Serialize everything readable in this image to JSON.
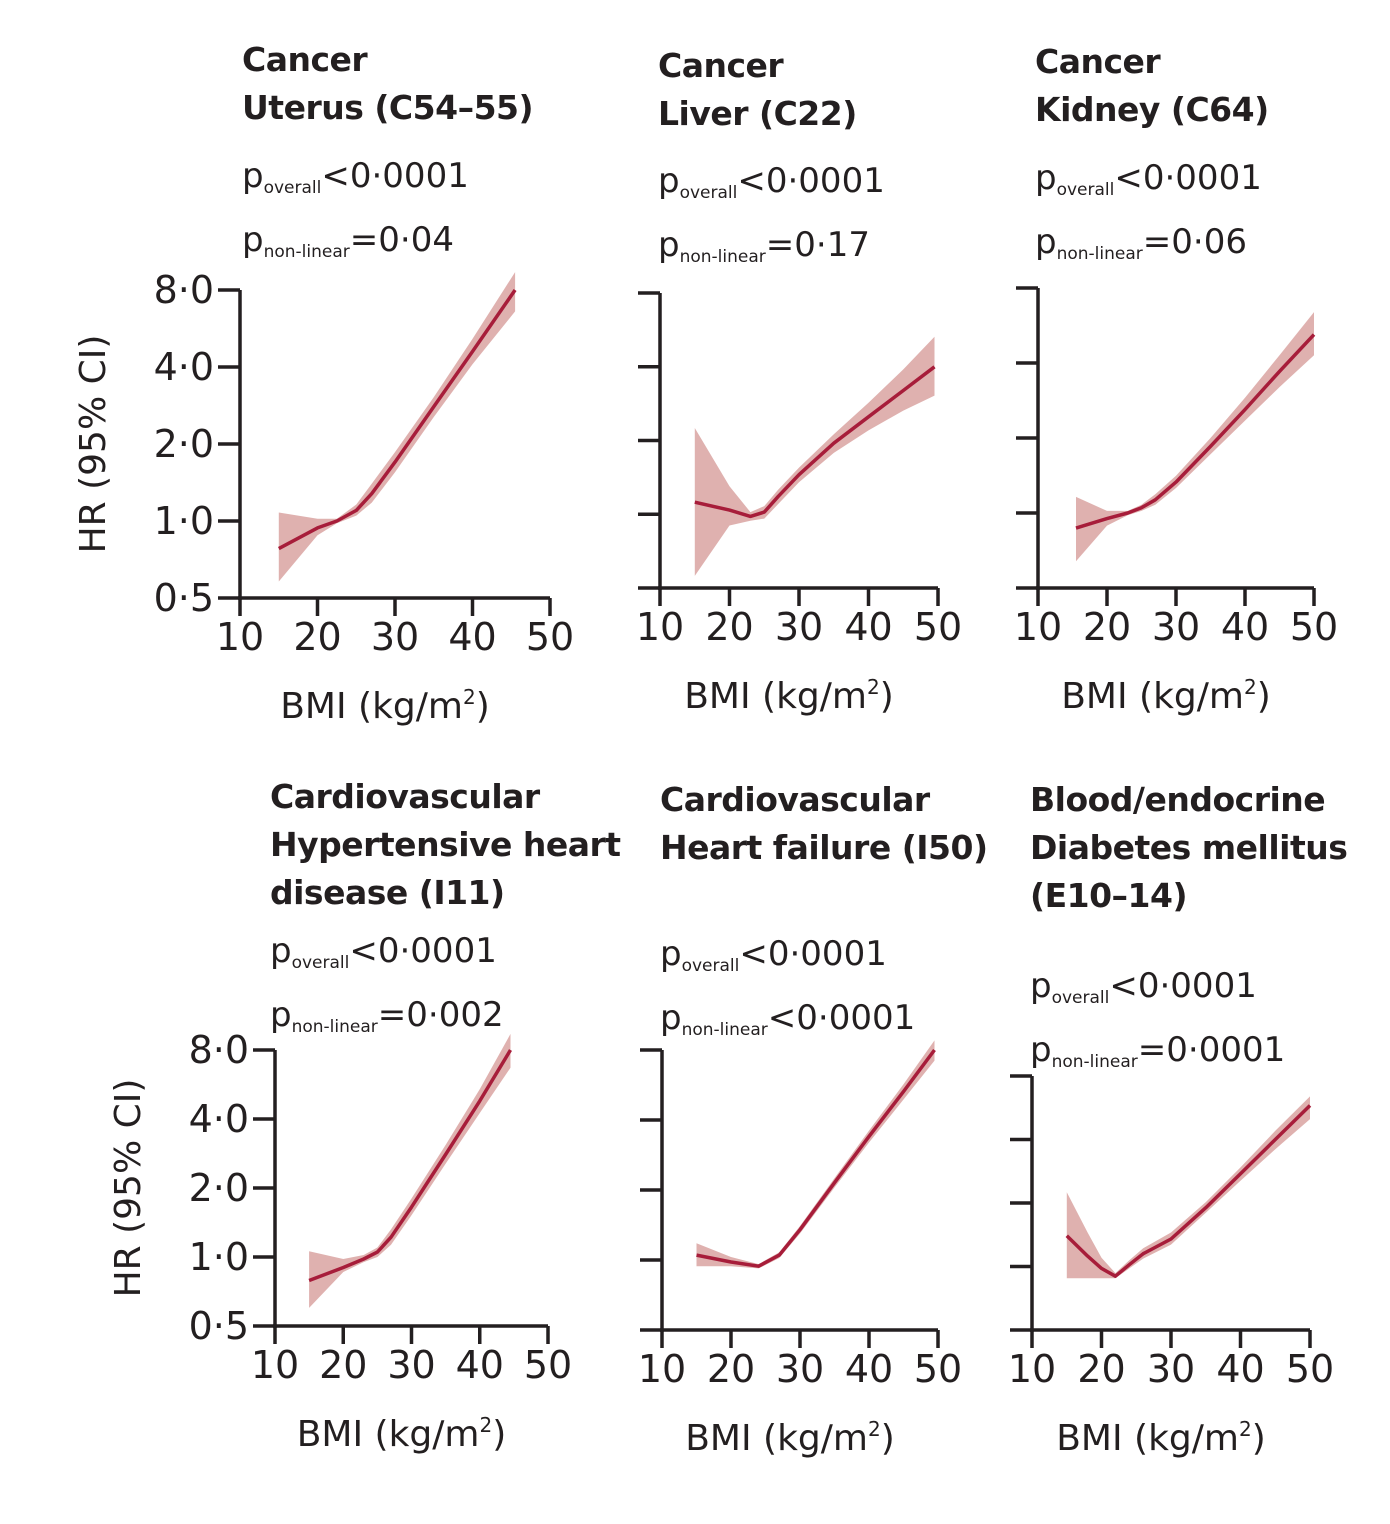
{
  "y_axis_title": "HR (95% CI)",
  "x_axis_title": "BMI (kg/m",
  "x_axis_title_sup": "2",
  "x_axis_title_close": ")",
  "chart_data": [
    {
      "type": "line",
      "category": "Cancer",
      "outcome": "Uterus (C54–55)",
      "p_overall": "<0·0001",
      "p_non_linear": "=0·04",
      "p_overall_label": "p",
      "p_overall_sub": "overall",
      "p_non_linear_label": "p",
      "p_non_linear_sub": "non-linear",
      "xlabel": "BMI (kg/m²)",
      "ylabel": "HR (95% CI)",
      "xlim": [
        10,
        50
      ],
      "ylim": [
        0.5,
        8.0
      ],
      "y_scale": "log",
      "x_ticks": [
        "10",
        "20",
        "30",
        "40",
        "50"
      ],
      "y_ticks": [
        "0·5",
        "1·0",
        "2·0",
        "4·0",
        "8·0"
      ],
      "show_y_tick_labels": true,
      "x": [
        15,
        20,
        22.5,
        25,
        27,
        30,
        35,
        40,
        45.5
      ],
      "hr": [
        0.78,
        0.94,
        1.0,
        1.1,
        1.28,
        1.7,
        2.8,
        4.6,
        8.0
      ],
      "lower": [
        0.58,
        0.88,
        0.98,
        1.05,
        1.18,
        1.55,
        2.55,
        4.1,
        6.6
      ],
      "upper": [
        1.08,
        1.02,
        1.02,
        1.16,
        1.4,
        1.86,
        3.05,
        5.15,
        9.4
      ]
    },
    {
      "type": "line",
      "category": "Cancer",
      "outcome": "Liver (C22)",
      "p_overall": "<0·0001",
      "p_non_linear": "=0·17",
      "p_overall_label": "p",
      "p_overall_sub": "overall",
      "p_non_linear_label": "p",
      "p_non_linear_sub": "non-linear",
      "xlabel": "BMI (kg/m²)",
      "ylabel": "",
      "xlim": [
        10,
        50
      ],
      "ylim": [
        0.5,
        8.0
      ],
      "y_scale": "log",
      "x_ticks": [
        "10",
        "20",
        "30",
        "40",
        "50"
      ],
      "y_ticks": [
        "0·5",
        "1·0",
        "2·0",
        "4·0",
        "8·0"
      ],
      "show_y_tick_labels": false,
      "x": [
        15,
        20,
        23,
        25,
        27,
        30,
        35,
        40,
        45,
        49.5
      ],
      "hr": [
        1.12,
        1.04,
        0.98,
        1.02,
        1.18,
        1.45,
        1.95,
        2.5,
        3.2,
        4.0
      ],
      "lower": [
        0.56,
        0.9,
        0.94,
        0.96,
        1.1,
        1.35,
        1.78,
        2.2,
        2.65,
        3.05
      ],
      "upper": [
        2.25,
        1.3,
        1.02,
        1.08,
        1.26,
        1.55,
        2.12,
        2.85,
        3.9,
        5.3
      ]
    },
    {
      "type": "line",
      "category": "Cancer",
      "outcome": "Kidney (C64)",
      "p_overall": "<0·0001",
      "p_non_linear": "=0·06",
      "p_overall_label": "p",
      "p_overall_sub": "overall",
      "p_non_linear_label": "p",
      "p_non_linear_sub": "non-linear",
      "xlabel": "BMI (kg/m²)",
      "ylabel": "",
      "xlim": [
        10,
        50
      ],
      "ylim": [
        0.5,
        8.0
      ],
      "y_scale": "log",
      "x_ticks": [
        "10",
        "20",
        "30",
        "40",
        "50"
      ],
      "y_ticks": [
        "0·5",
        "1·0",
        "2·0",
        "4·0",
        "8·0"
      ],
      "show_y_tick_labels": false,
      "x": [
        15.5,
        20,
        23,
        25,
        27,
        30,
        35,
        40,
        45,
        50
      ],
      "hr": [
        0.87,
        0.95,
        1.0,
        1.05,
        1.13,
        1.33,
        1.85,
        2.6,
        3.7,
        5.2
      ],
      "lower": [
        0.64,
        0.89,
        0.98,
        1.02,
        1.08,
        1.26,
        1.72,
        2.35,
        3.2,
        4.3
      ],
      "upper": [
        1.16,
        1.02,
        1.02,
        1.08,
        1.19,
        1.41,
        2.0,
        2.9,
        4.3,
        6.4
      ]
    },
    {
      "type": "line",
      "category": "Cardiovascular",
      "outcome_lines": [
        "Hypertensive heart",
        "disease (I11)"
      ],
      "p_overall": "<0·0001",
      "p_non_linear": "=0·002",
      "p_overall_label": "p",
      "p_overall_sub": "overall",
      "p_non_linear_label": "p",
      "p_non_linear_sub": "non-linear",
      "xlabel": "BMI (kg/m²)",
      "ylabel": "HR (95% CI)",
      "xlim": [
        10,
        50
      ],
      "ylim": [
        0.5,
        8.0
      ],
      "y_scale": "log",
      "x_ticks": [
        "10",
        "20",
        "30",
        "40",
        "50"
      ],
      "y_ticks": [
        "0·5",
        "1·0",
        "2·0",
        "4·0",
        "8·0"
      ],
      "show_y_tick_labels": true,
      "x": [
        15,
        20,
        23,
        25,
        27,
        30,
        35,
        40,
        44.5
      ],
      "hr": [
        0.79,
        0.9,
        0.98,
        1.05,
        1.22,
        1.65,
        2.8,
        4.8,
        8.0
      ],
      "lower": [
        0.6,
        0.86,
        0.95,
        1.0,
        1.13,
        1.52,
        2.55,
        4.25,
        6.7
      ],
      "upper": [
        1.06,
        0.98,
        1.02,
        1.1,
        1.32,
        1.8,
        3.08,
        5.4,
        9.4
      ]
    },
    {
      "type": "line",
      "category": "Cardiovascular",
      "outcome": "Heart failure (I50)",
      "p_overall": "<0·0001",
      "p_non_linear": "<0·0001",
      "p_overall_label": "p",
      "p_overall_sub": "overall",
      "p_non_linear_label": "p",
      "p_non_linear_sub": "non-linear",
      "xlabel": "BMI (kg/m²)",
      "ylabel": "",
      "xlim": [
        10,
        50
      ],
      "ylim": [
        0.5,
        8.0
      ],
      "y_scale": "log",
      "x_ticks": [
        "10",
        "20",
        "30",
        "40",
        "50"
      ],
      "y_ticks": [
        "0·5",
        "1·0",
        "2·0",
        "4·0",
        "8·0"
      ],
      "show_y_tick_labels": false,
      "x": [
        15,
        20,
        24,
        27,
        30,
        35,
        40,
        45,
        49.5
      ],
      "hr": [
        1.05,
        0.98,
        0.94,
        1.05,
        1.35,
        2.15,
        3.4,
        5.3,
        8.0
      ],
      "lower": [
        0.94,
        0.94,
        0.92,
        1.02,
        1.3,
        2.05,
        3.2,
        4.9,
        7.2
      ],
      "upper": [
        1.18,
        1.03,
        0.96,
        1.08,
        1.4,
        2.25,
        3.6,
        5.7,
        8.8
      ]
    },
    {
      "type": "line",
      "category": "Blood/endocrine",
      "outcome_lines": [
        "Diabetes mellitus",
        "(E10–14)"
      ],
      "p_overall": "<0·0001",
      "p_non_linear": "=0·0001",
      "p_overall_label": "p",
      "p_overall_sub": "overall",
      "p_non_linear_label": "p",
      "p_non_linear_sub": "non-linear",
      "xlabel": "BMI (kg/m²)",
      "ylabel": "",
      "xlim": [
        10,
        50
      ],
      "ylim": [
        0.5,
        8.0
      ],
      "y_scale": "log",
      "x_ticks": [
        "10",
        "20",
        "30",
        "40",
        "50"
      ],
      "y_ticks": [
        "0·5",
        "1·0",
        "2·0",
        "4·0",
        "8·0"
      ],
      "show_y_tick_labels": false,
      "x": [
        15,
        18,
        20,
        22,
        24,
        26,
        30,
        35,
        40,
        45,
        50
      ],
      "hr": [
        1.4,
        1.12,
        0.98,
        0.9,
        1.02,
        1.15,
        1.35,
        1.9,
        2.75,
        4.0,
        5.8
      ],
      "lower": [
        0.88,
        0.88,
        0.88,
        0.88,
        0.98,
        1.09,
        1.27,
        1.8,
        2.55,
        3.6,
        5.0
      ],
      "upper": [
        2.25,
        1.45,
        1.1,
        0.93,
        1.07,
        1.22,
        1.45,
        2.02,
        2.95,
        4.4,
        6.4
      ]
    }
  ]
}
